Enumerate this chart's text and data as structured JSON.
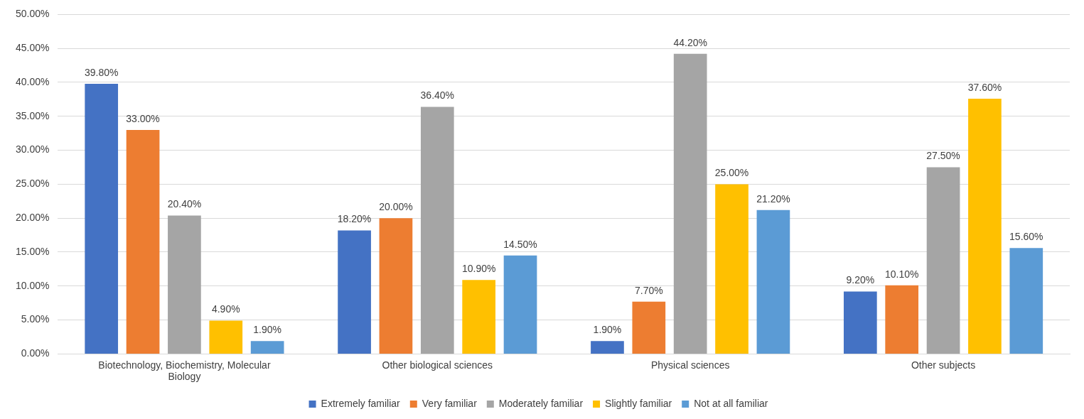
{
  "chart_data": {
    "type": "bar",
    "categories": [
      "Biotechnology, Biochemistry, Molecular Biology",
      "Other biological sciences",
      "Physical sciences",
      "Other subjects"
    ],
    "series": [
      {
        "name": "Extremely familiar",
        "color": "#4472c4",
        "values": [
          39.8,
          18.2,
          1.9,
          9.2
        ],
        "value_labels": [
          "39.80%",
          "18.20%",
          "1.90%",
          "9.20%"
        ]
      },
      {
        "name": "Very familiar",
        "color": "#ed7d31",
        "values": [
          33.0,
          20.0,
          7.7,
          10.1
        ],
        "value_labels": [
          "33.00%",
          "20.00%",
          "7.70%",
          "10.10%"
        ]
      },
      {
        "name": "Moderately familiar",
        "color": "#a5a5a5",
        "values": [
          20.4,
          36.4,
          44.2,
          27.5
        ],
        "value_labels": [
          "20.40%",
          "36.40%",
          "44.20%",
          "27.50%"
        ]
      },
      {
        "name": "Slightly familiar",
        "color": "#ffc000",
        "values": [
          4.9,
          10.9,
          25.0,
          37.6
        ],
        "value_labels": [
          "4.90%",
          "10.90%",
          "25.00%",
          "37.60%"
        ]
      },
      {
        "name": "Not at all familiar",
        "color": "#5b9bd5",
        "values": [
          1.9,
          14.5,
          21.2,
          15.6
        ],
        "value_labels": [
          "1.90%",
          "14.50%",
          "21.20%",
          "15.60%"
        ]
      }
    ],
    "ylim": [
      0,
      50
    ],
    "yticks": [
      {
        "value": 0,
        "label": "0.00%"
      },
      {
        "value": 5,
        "label": "5.00%"
      },
      {
        "value": 10,
        "label": "10.00%"
      },
      {
        "value": 15,
        "label": "15.00%"
      },
      {
        "value": 20,
        "label": "20.00%"
      },
      {
        "value": 25,
        "label": "25.00%"
      },
      {
        "value": 30,
        "label": "30.00%"
      },
      {
        "value": 35,
        "label": "35.00%"
      },
      {
        "value": 40,
        "label": "40.00%"
      },
      {
        "value": 45,
        "label": "45.00%"
      },
      {
        "value": 50,
        "label": "50.00%"
      }
    ],
    "grid": "y",
    "legend": "bottom"
  }
}
